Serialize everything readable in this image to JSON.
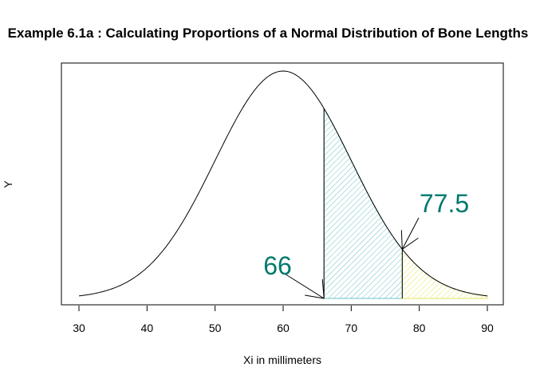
{
  "chart_data": {
    "type": "line",
    "title": "Example 6.1a : Calculating Proportions of a Normal Distribution of Bone Lengths",
    "xlabel": "Xi in millimeters",
    "ylabel": "Y",
    "xlim": [
      30,
      90
    ],
    "x_ticks": [
      30,
      40,
      50,
      60,
      70,
      80,
      90
    ],
    "y_ticks_shown": false,
    "grid": false,
    "legend": "none",
    "distribution": {
      "mean": 60,
      "sd": 10
    },
    "shaded_regions": [
      {
        "from": 66,
        "to": 77.5,
        "pattern": "diagonal-hatch",
        "color": "#6cc3c6"
      },
      {
        "from": 77.5,
        "to": 90,
        "pattern": "diagonal-hatch",
        "color": "#e6e65a"
      }
    ],
    "annotations": [
      {
        "text": "66",
        "x": 66,
        "color": "#00796b"
      },
      {
        "text": "77.5",
        "x": 77.5,
        "color": "#00796b"
      }
    ]
  }
}
